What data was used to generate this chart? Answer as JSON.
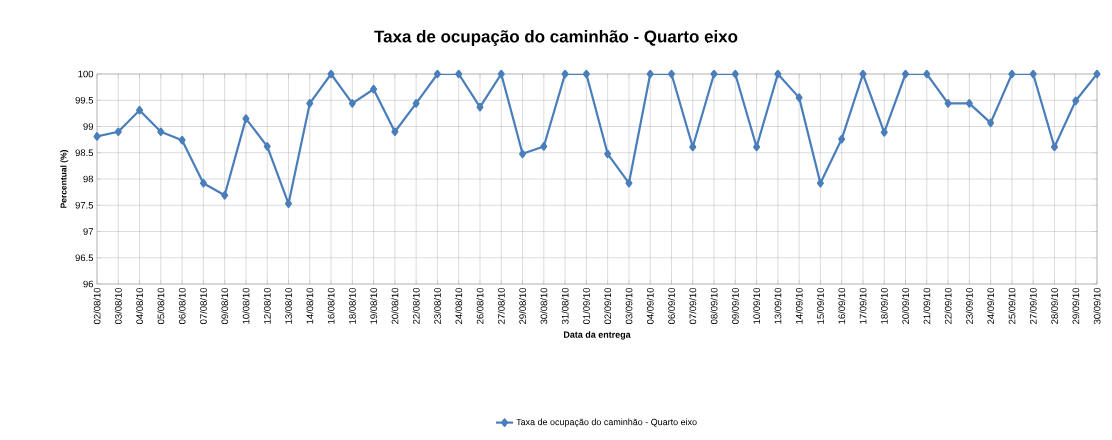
{
  "chart_data": {
    "type": "line",
    "title": "Taxa de ocupação do caminhão - Quarto eixo",
    "xlabel": "Data da entrega",
    "ylabel": "Percentual (%)",
    "categories": [
      "02/08/10",
      "03/08/10",
      "04/08/10",
      "05/08/10",
      "06/08/10",
      "07/08/10",
      "09/08/10",
      "10/08/10",
      "12/08/10",
      "13/08/10",
      "14/08/10",
      "16/08/10",
      "18/08/10",
      "19/08/10",
      "20/08/10",
      "22/08/10",
      "23/08/10",
      "24/08/10",
      "26/08/10",
      "27/08/10",
      "29/08/10",
      "30/08/10",
      "31/08/10",
      "01/09/10",
      "02/09/10",
      "03/09/10",
      "04/09/10",
      "06/09/10",
      "07/09/10",
      "08/09/10",
      "09/09/10",
      "10/09/10",
      "13/09/10",
      "14/09/10",
      "15/09/10",
      "16/09/10",
      "17/09/10",
      "18/09/10",
      "20/09/10",
      "21/09/10",
      "22/09/10",
      "23/09/10",
      "24/09/10",
      "25/09/10",
      "27/09/10",
      "28/09/10",
      "29/09/10",
      "30/09/10"
    ],
    "series": [
      {
        "name": "Taxa de ocupação do caminhão - Quarto eixo",
        "color": "#4a7ebb",
        "values": [
          98.81,
          98.9,
          99.31,
          98.9,
          98.74,
          97.92,
          97.69,
          99.15,
          98.62,
          97.53,
          99.44,
          100,
          99.44,
          99.71,
          98.9,
          99.44,
          100,
          100,
          99.37,
          100,
          98.48,
          98.62,
          100,
          100,
          98.48,
          97.92,
          100,
          100,
          98.61,
          100,
          100,
          98.61,
          100,
          99.55,
          97.92,
          98.76,
          100,
          98.89,
          100,
          100,
          99.44,
          99.44,
          99.07,
          100,
          100,
          98.61,
          99.49,
          100
        ]
      }
    ],
    "ylim": [
      96,
      100
    ],
    "yticks": [
      96,
      96.5,
      97,
      97.5,
      98,
      98.5,
      99,
      99.5,
      100
    ],
    "grid": true,
    "legend": "bottom",
    "marker": "diamond",
    "line_style": "solid"
  }
}
